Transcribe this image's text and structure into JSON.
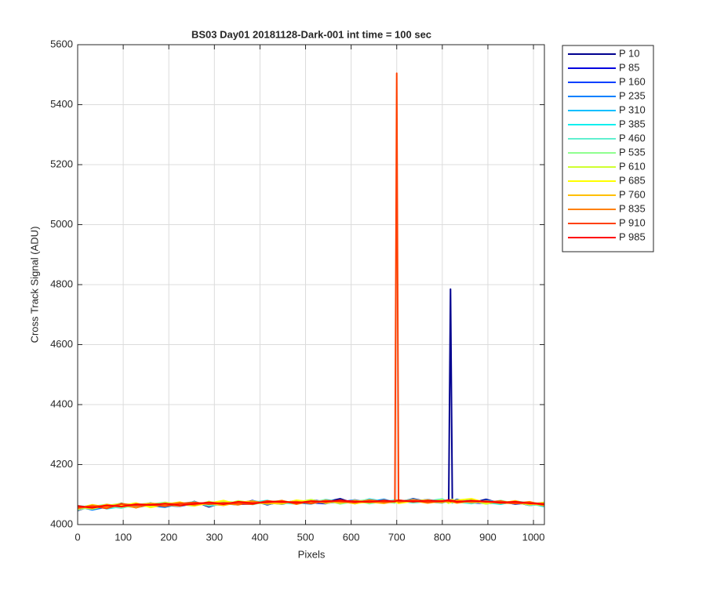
{
  "chart_data": {
    "type": "line",
    "title": "BS03 Day01 20181128-Dark-001 int time = 100 sec",
    "xlabel": "Pixels",
    "ylabel": "Cross Track Signal (ADU)",
    "xlim": [
      0,
      1024
    ],
    "xticks": [
      0,
      100,
      200,
      300,
      400,
      500,
      600,
      700,
      800,
      900,
      1000
    ],
    "ylim": [
      4000,
      5600
    ],
    "yticks": [
      4000,
      4200,
      4400,
      4600,
      4800,
      5000,
      5200,
      5400,
      5600
    ],
    "grid": true,
    "legend": "outside-right",
    "x": [
      0,
      32,
      64,
      96,
      128,
      160,
      192,
      224,
      256,
      288,
      320,
      352,
      384,
      416,
      448,
      480,
      512,
      544,
      576,
      608,
      640,
      672,
      696,
      700,
      704,
      736,
      768,
      800,
      814,
      818,
      822,
      832,
      864,
      896,
      928,
      960,
      992,
      1023
    ],
    "series": [
      {
        "name": "P 10",
        "color": "#00008f",
        "values": [
          4047,
          4063,
          4057,
          4071,
          4057,
          4066,
          4072,
          4062,
          4077,
          4059,
          4073,
          4069,
          4080,
          4066,
          4078,
          4070,
          4082,
          4076,
          4086,
          4070,
          4080,
          4072,
          4081,
          4078,
          4074,
          4086,
          4076,
          4084,
          4072,
          4785,
          4077,
          4084,
          4072,
          4084,
          4070,
          4075,
          4064,
          4070
        ]
      },
      {
        "name": "P 85",
        "color": "#0000df",
        "values": [
          4052,
          4060,
          4065,
          4058,
          4068,
          4061,
          4070,
          4063,
          4072,
          4066,
          4075,
          4068,
          4069,
          4078,
          4071,
          4080,
          4073,
          4070,
          4081,
          4074,
          4083,
          4075,
          4077,
          4079,
          4072,
          4084,
          4076,
          4073,
          4082,
          4075,
          4078,
          4080,
          4073,
          4071,
          4079,
          4068,
          4074,
          4062
        ]
      },
      {
        "name": "P 160",
        "color": "#0040ff",
        "values": [
          4058,
          4054,
          4062,
          4066,
          4059,
          4070,
          4064,
          4061,
          4071,
          4069,
          4065,
          4076,
          4070,
          4074,
          4068,
          4079,
          4077,
          4072,
          4075,
          4082,
          4073,
          4079,
          4076,
          4080,
          4074,
          4077,
          4083,
          4075,
          4078,
          4081,
          4074,
          4076,
          4082,
          4070,
          4073,
          4077,
          4066,
          4071
        ]
      },
      {
        "name": "P 235",
        "color": "#0080ff",
        "values": [
          4061,
          4049,
          4059,
          4064,
          4070,
          4063,
          4058,
          4069,
          4066,
          4073,
          4068,
          4071,
          4077,
          4067,
          4075,
          4073,
          4069,
          4080,
          4078,
          4072,
          4076,
          4084,
          4074,
          4078,
          4081,
          4075,
          4079,
          4074,
          4077,
          4083,
          4076,
          4079,
          4071,
          4080,
          4075,
          4069,
          4072,
          4065
        ]
      },
      {
        "name": "P 310",
        "color": "#00bfff",
        "values": [
          4050,
          4062,
          4056,
          4067,
          4061,
          4072,
          4060,
          4068,
          4074,
          4064,
          4070,
          4066,
          4079,
          4071,
          4076,
          4070,
          4081,
          4074,
          4079,
          4073,
          4085,
          4077,
          4074,
          4080,
          4076,
          4082,
          4073,
          4081,
          4079,
          4076,
          4072,
          4083,
          4075,
          4078,
          4070,
          4076,
          4068,
          4073
        ]
      },
      {
        "name": "P 385",
        "color": "#10efef",
        "values": [
          4056,
          4065,
          4053,
          4060,
          4069,
          4062,
          4071,
          4067,
          4064,
          4075,
          4072,
          4068,
          4074,
          4080,
          4070,
          4077,
          4072,
          4083,
          4076,
          4071,
          4079,
          4074,
          4082,
          4075,
          4080,
          4073,
          4078,
          4085,
          4074,
          4080,
          4077,
          4073,
          4081,
          4074,
          4068,
          4078,
          4071,
          4060
        ]
      },
      {
        "name": "P 460",
        "color": "#60efcf",
        "values": [
          4063,
          4057,
          4061,
          4055,
          4066,
          4071,
          4063,
          4069,
          4076,
          4062,
          4069,
          4075,
          4067,
          4078,
          4072,
          4069,
          4079,
          4075,
          4073,
          4081,
          4070,
          4078,
          4080,
          4073,
          4077,
          4084,
          4076,
          4072,
          4080,
          4077,
          4081,
          4075,
          4070,
          4079,
          4073,
          4077,
          4064,
          4069
        ]
      },
      {
        "name": "P 535",
        "color": "#8fff8f",
        "values": [
          4049,
          4060,
          4067,
          4061,
          4058,
          4068,
          4074,
          4065,
          4070,
          4067,
          4077,
          4073,
          4068,
          4076,
          4079,
          4071,
          4075,
          4082,
          4069,
          4077,
          4083,
          4076,
          4072,
          4079,
          4082,
          4074,
          4081,
          4077,
          4075,
          4083,
          4073,
          4078,
          4076,
          4072,
          4080,
          4070,
          4075,
          4067
        ]
      },
      {
        "name": "P 610",
        "color": "#cfff30",
        "values": [
          4059,
          4052,
          4063,
          4070,
          4064,
          4060,
          4073,
          4068,
          4062,
          4077,
          4066,
          4079,
          4072,
          4070,
          4077,
          4074,
          4083,
          4071,
          4079,
          4076,
          4072,
          4081,
          4075,
          4077,
          4073,
          4080,
          4076,
          4083,
          4071,
          4078,
          4084,
          4074,
          4079,
          4069,
          4077,
          4072,
          4067,
          4074
        ]
      },
      {
        "name": "P 685",
        "color": "#ffff00",
        "values": [
          4054,
          4066,
          4058,
          4063,
          4072,
          4057,
          4067,
          4075,
          4063,
          4071,
          4080,
          4067,
          4075,
          4072,
          4069,
          4081,
          4076,
          4073,
          4078,
          4070,
          4077,
          4073,
          4079,
          4074,
          4071,
          4078,
          4082,
          4074,
          4080,
          4073,
          4077,
          4081,
          4086,
          4073,
          4076,
          4074,
          4070,
          4064
        ]
      },
      {
        "name": "P 760",
        "color": "#ffbf00",
        "values": [
          4060,
          4055,
          4067,
          4059,
          4065,
          4071,
          4066,
          4062,
          4073,
          4070,
          4064,
          4074,
          4078,
          4069,
          4073,
          4077,
          4070,
          4079,
          4072,
          4080,
          4075,
          4071,
          4078,
          4082,
          4075,
          4079,
          4072,
          4078,
          4076,
          4081,
          4075,
          4072,
          4078,
          4076,
          4071,
          4079,
          4067,
          4072
        ]
      },
      {
        "name": "P 835",
        "color": "#ff8000",
        "values": [
          4053,
          4064,
          4060,
          4068,
          4056,
          4069,
          4067,
          4073,
          4065,
          4074,
          4071,
          4066,
          4076,
          4073,
          4080,
          4068,
          4078,
          4074,
          4081,
          4075,
          4079,
          4073,
          4076,
          4080,
          4074,
          4082,
          4077,
          4074,
          4081,
          4078,
          4076,
          4080,
          4074,
          4078,
          4072,
          4071,
          4076,
          4063
        ]
      },
      {
        "name": "P 910",
        "color": "#ff4000",
        "values": [
          4057,
          4061,
          4054,
          4069,
          4063,
          4066,
          4061,
          4070,
          4074,
          4068,
          4073,
          4070,
          4068,
          4079,
          4074,
          4076,
          4071,
          4080,
          4077,
          4073,
          4081,
          4076,
          4078,
          5505,
          4077,
          4081,
          4074,
          4079,
          4077,
          4082,
          4078,
          4074,
          4080,
          4075,
          4078,
          4070,
          4073,
          4069
        ]
      },
      {
        "name": "P 985",
        "color": "#ff0000",
        "values": [
          4062,
          4056,
          4064,
          4060,
          4068,
          4065,
          4070,
          4064,
          4069,
          4074,
          4068,
          4076,
          4071,
          4075,
          4077,
          4072,
          4078,
          4076,
          4080,
          4077,
          4075,
          4080,
          4077,
          4079,
          4081,
          4076,
          4080,
          4078,
          4082,
          4077,
          4080,
          4076,
          4079,
          4077,
          4073,
          4076,
          4071,
          4068
        ]
      }
    ]
  }
}
